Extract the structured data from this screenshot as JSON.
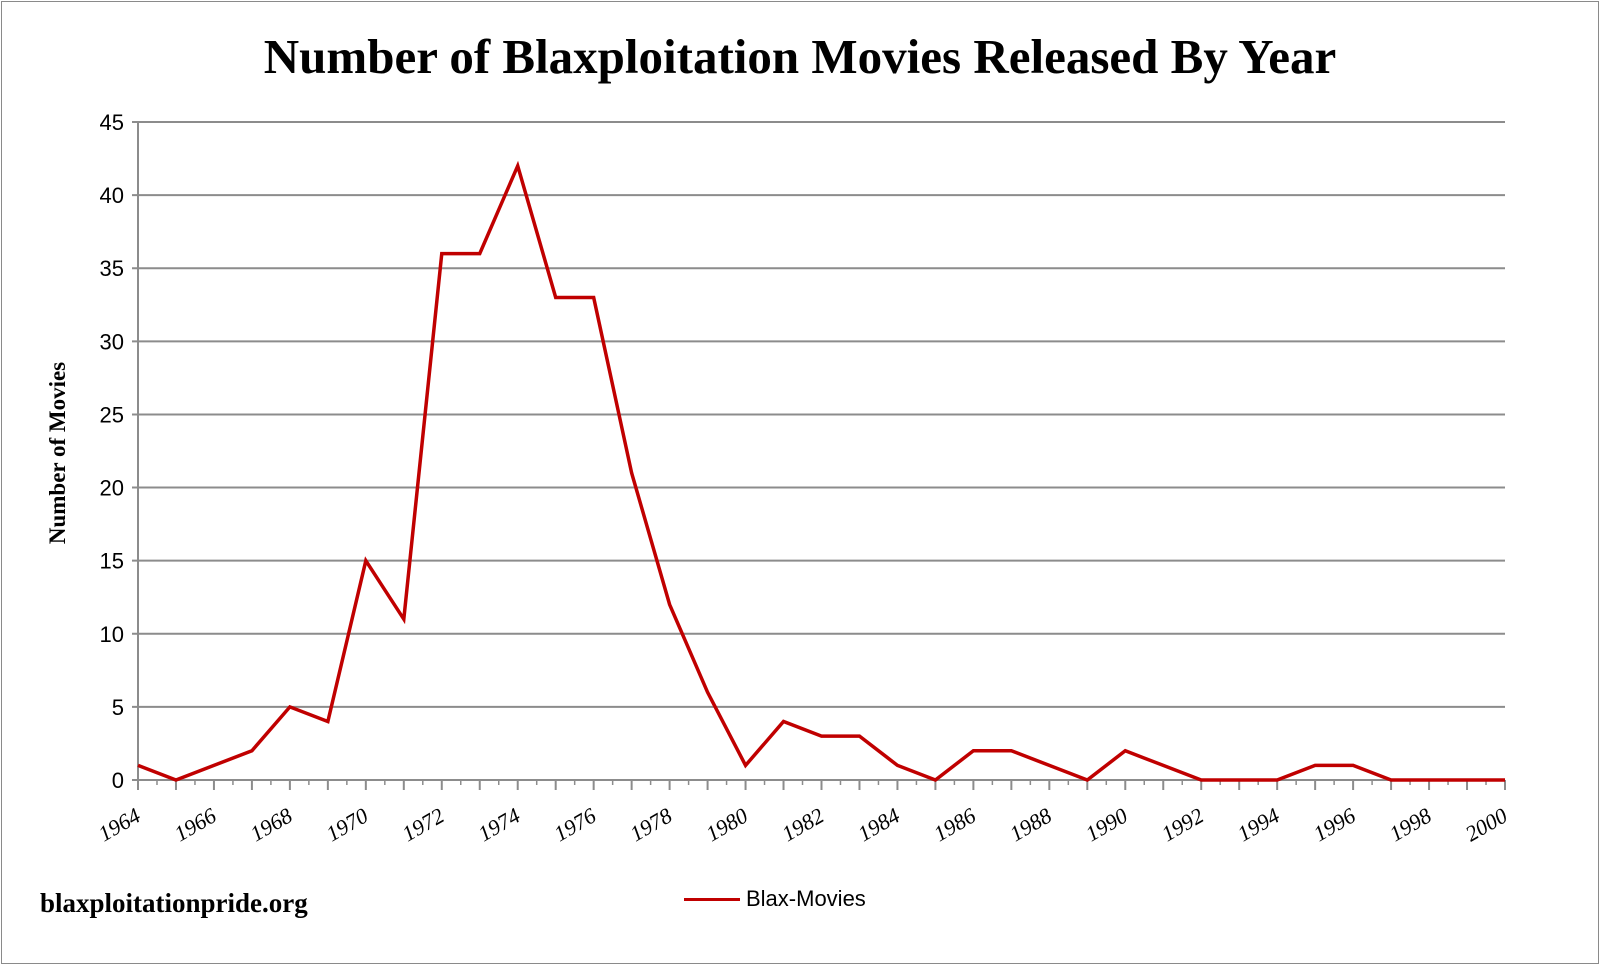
{
  "chart_data": {
    "type": "line",
    "title": "Number of Blaxploitation Movies Released By Year",
    "xlabel": "",
    "ylabel": "Number of Movies",
    "ylim": [
      0,
      45
    ],
    "yticks": [
      0,
      5,
      10,
      15,
      20,
      25,
      30,
      35,
      40,
      45
    ],
    "xlim": [
      1964,
      2000
    ],
    "xticks": [
      1964,
      1966,
      1968,
      1970,
      1972,
      1974,
      1976,
      1978,
      1980,
      1982,
      1984,
      1986,
      1988,
      1990,
      1992,
      1994,
      1996,
      1998,
      2000
    ],
    "grid": true,
    "legend_position": "bottom",
    "series": [
      {
        "name": "Blax-Movies",
        "color": "#c00000",
        "x": [
          1964,
          1965,
          1966,
          1967,
          1968,
          1969,
          1970,
          1971,
          1972,
          1973,
          1974,
          1975,
          1976,
          1977,
          1978,
          1979,
          1980,
          1981,
          1982,
          1983,
          1984,
          1985,
          1986,
          1987,
          1988,
          1989,
          1990,
          1991,
          1992,
          1993,
          1994,
          1995,
          1996,
          1997,
          1998,
          1999,
          2000
        ],
        "values": [
          1,
          0,
          1,
          2,
          5,
          4,
          15,
          11,
          36,
          36,
          42,
          33,
          33,
          21,
          12,
          6,
          1,
          4,
          3,
          3,
          1,
          0,
          2,
          2,
          1,
          0,
          2,
          1,
          0,
          0,
          0,
          1,
          1,
          0,
          0,
          0,
          0
        ]
      }
    ]
  },
  "footer": {
    "site": "blaxploitationpride.org"
  }
}
